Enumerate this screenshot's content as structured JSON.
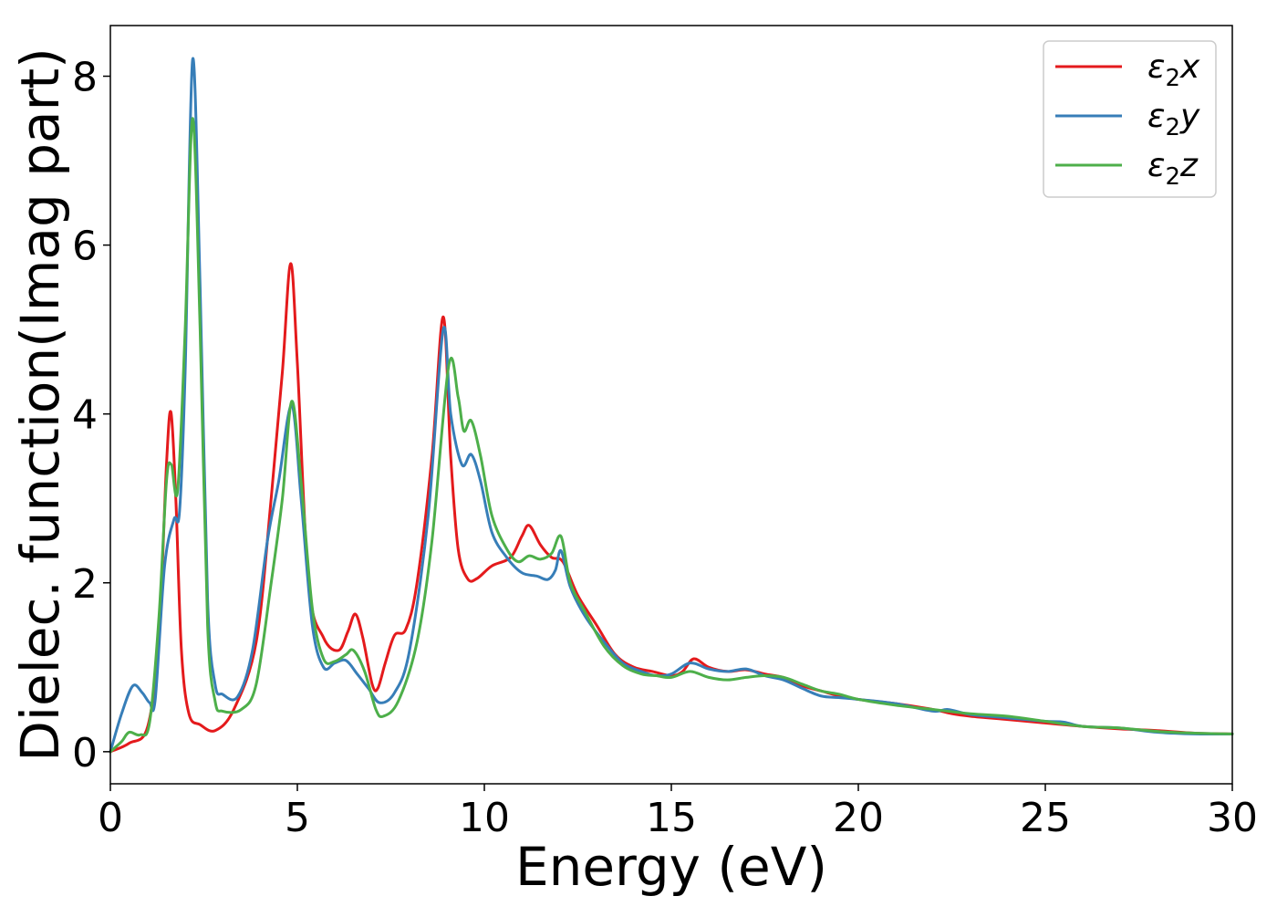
{
  "chart_data": {
    "type": "line",
    "title": "",
    "xlabel": "Energy (eV)",
    "ylabel": "Dielec. function(Imag part)",
    "xlim": [
      0,
      30
    ],
    "ylim": [
      -0.38,
      8.6
    ],
    "xticks": [
      0,
      5,
      10,
      15,
      20,
      25,
      30
    ],
    "yticks": [
      0,
      2,
      4,
      6,
      8
    ],
    "grid": false,
    "legend_position": "top-right",
    "series": [
      {
        "name": "ε₂x",
        "legend_base": "ε",
        "legend_sub": "2",
        "legend_suffix": "x",
        "color": "#e41a1c",
        "points": [
          [
            0,
            0
          ],
          [
            0.5,
            0.1
          ],
          [
            1.0,
            0.3
          ],
          [
            1.3,
            1.4
          ],
          [
            1.5,
            3.4
          ],
          [
            1.62,
            4.02
          ],
          [
            1.75,
            3.0
          ],
          [
            1.9,
            1.2
          ],
          [
            2.1,
            0.45
          ],
          [
            2.4,
            0.32
          ],
          [
            2.8,
            0.25
          ],
          [
            3.3,
            0.5
          ],
          [
            3.9,
            1.3
          ],
          [
            4.3,
            3.0
          ],
          [
            4.6,
            4.5
          ],
          [
            4.82,
            5.78
          ],
          [
            5.0,
            4.6
          ],
          [
            5.3,
            2.0
          ],
          [
            5.7,
            1.35
          ],
          [
            6.1,
            1.2
          ],
          [
            6.35,
            1.42
          ],
          [
            6.55,
            1.63
          ],
          [
            6.75,
            1.35
          ],
          [
            7.0,
            0.8
          ],
          [
            7.15,
            0.75
          ],
          [
            7.35,
            1.05
          ],
          [
            7.6,
            1.38
          ],
          [
            7.9,
            1.45
          ],
          [
            8.2,
            2.0
          ],
          [
            8.6,
            3.5
          ],
          [
            8.9,
            5.15
          ],
          [
            9.1,
            3.5
          ],
          [
            9.3,
            2.4
          ],
          [
            9.55,
            2.05
          ],
          [
            9.8,
            2.05
          ],
          [
            10.2,
            2.2
          ],
          [
            10.7,
            2.3
          ],
          [
            11.0,
            2.55
          ],
          [
            11.2,
            2.68
          ],
          [
            11.5,
            2.45
          ],
          [
            11.8,
            2.3
          ],
          [
            12.1,
            2.25
          ],
          [
            12.5,
            1.85
          ],
          [
            13.0,
            1.5
          ],
          [
            13.5,
            1.15
          ],
          [
            14.0,
            1.0
          ],
          [
            14.5,
            0.95
          ],
          [
            15.0,
            0.9
          ],
          [
            15.3,
            0.95
          ],
          [
            15.6,
            1.1
          ],
          [
            16.0,
            1.0
          ],
          [
            16.5,
            0.95
          ],
          [
            17.0,
            0.97
          ],
          [
            17.5,
            0.92
          ],
          [
            18.0,
            0.88
          ],
          [
            18.5,
            0.78
          ],
          [
            19.0,
            0.72
          ],
          [
            19.5,
            0.66
          ],
          [
            20.0,
            0.62
          ],
          [
            21.0,
            0.57
          ],
          [
            22.0,
            0.5
          ],
          [
            22.5,
            0.45
          ],
          [
            23.0,
            0.42
          ],
          [
            24.0,
            0.38
          ],
          [
            25.0,
            0.34
          ],
          [
            26.0,
            0.3
          ],
          [
            27.0,
            0.27
          ],
          [
            28.0,
            0.25
          ],
          [
            29.0,
            0.22
          ],
          [
            30.0,
            0.21
          ]
        ]
      },
      {
        "name": "ε₂y",
        "legend_base": "ε",
        "legend_sub": "2",
        "legend_suffix": "y",
        "color": "#377eb8",
        "points": [
          [
            0,
            0
          ],
          [
            0.3,
            0.45
          ],
          [
            0.6,
            0.78
          ],
          [
            0.85,
            0.7
          ],
          [
            1.05,
            0.58
          ],
          [
            1.2,
            0.62
          ],
          [
            1.45,
            2.2
          ],
          [
            1.7,
            2.75
          ],
          [
            1.85,
            2.85
          ],
          [
            2.0,
            4.5
          ],
          [
            2.2,
            8.2
          ],
          [
            2.4,
            5.5
          ],
          [
            2.6,
            1.8
          ],
          [
            2.8,
            0.8
          ],
          [
            3.0,
            0.68
          ],
          [
            3.4,
            0.65
          ],
          [
            3.8,
            1.2
          ],
          [
            4.2,
            2.5
          ],
          [
            4.5,
            3.2
          ],
          [
            4.85,
            4.1
          ],
          [
            5.1,
            3.0
          ],
          [
            5.4,
            1.5
          ],
          [
            5.7,
            1.0
          ],
          [
            6.0,
            1.05
          ],
          [
            6.3,
            1.08
          ],
          [
            6.6,
            0.92
          ],
          [
            6.9,
            0.75
          ],
          [
            7.2,
            0.58
          ],
          [
            7.6,
            0.7
          ],
          [
            8.0,
            1.2
          ],
          [
            8.5,
            2.8
          ],
          [
            8.9,
            5.0
          ],
          [
            9.1,
            4.0
          ],
          [
            9.4,
            3.4
          ],
          [
            9.65,
            3.52
          ],
          [
            9.9,
            3.2
          ],
          [
            10.2,
            2.6
          ],
          [
            10.6,
            2.3
          ],
          [
            11.0,
            2.12
          ],
          [
            11.4,
            2.08
          ],
          [
            11.7,
            2.04
          ],
          [
            11.9,
            2.15
          ],
          [
            12.05,
            2.38
          ],
          [
            12.3,
            1.95
          ],
          [
            12.7,
            1.6
          ],
          [
            13.2,
            1.3
          ],
          [
            13.7,
            1.05
          ],
          [
            14.2,
            0.95
          ],
          [
            14.6,
            0.9
          ],
          [
            15.0,
            0.92
          ],
          [
            15.5,
            1.05
          ],
          [
            16.0,
            0.98
          ],
          [
            16.5,
            0.95
          ],
          [
            17.0,
            0.98
          ],
          [
            17.5,
            0.9
          ],
          [
            18.0,
            0.85
          ],
          [
            18.5,
            0.75
          ],
          [
            19.0,
            0.66
          ],
          [
            19.5,
            0.64
          ],
          [
            20.0,
            0.62
          ],
          [
            21.0,
            0.57
          ],
          [
            22.0,
            0.48
          ],
          [
            22.4,
            0.5
          ],
          [
            23.0,
            0.44
          ],
          [
            24.0,
            0.4
          ],
          [
            25.0,
            0.36
          ],
          [
            25.5,
            0.35
          ],
          [
            26.0,
            0.3
          ],
          [
            27.0,
            0.28
          ],
          [
            28.0,
            0.23
          ],
          [
            29.0,
            0.21
          ],
          [
            30.0,
            0.21
          ]
        ]
      },
      {
        "name": "ε₂z",
        "legend_base": "ε",
        "legend_sub": "2",
        "legend_suffix": "z",
        "color": "#4daf4a",
        "points": [
          [
            0,
            0
          ],
          [
            0.3,
            0.12
          ],
          [
            0.5,
            0.23
          ],
          [
            0.8,
            0.2
          ],
          [
            1.05,
            0.35
          ],
          [
            1.3,
            1.6
          ],
          [
            1.5,
            3.2
          ],
          [
            1.63,
            3.4
          ],
          [
            1.8,
            3.1
          ],
          [
            2.0,
            5.0
          ],
          [
            2.2,
            7.5
          ],
          [
            2.4,
            5.0
          ],
          [
            2.6,
            1.5
          ],
          [
            2.8,
            0.6
          ],
          [
            3.0,
            0.48
          ],
          [
            3.5,
            0.5
          ],
          [
            3.9,
            0.8
          ],
          [
            4.3,
            2.0
          ],
          [
            4.6,
            3.0
          ],
          [
            4.85,
            4.15
          ],
          [
            5.1,
            3.2
          ],
          [
            5.4,
            1.7
          ],
          [
            5.7,
            1.1
          ],
          [
            6.0,
            1.07
          ],
          [
            6.3,
            1.15
          ],
          [
            6.5,
            1.2
          ],
          [
            6.8,
            0.95
          ],
          [
            7.1,
            0.5
          ],
          [
            7.3,
            0.42
          ],
          [
            7.7,
            0.6
          ],
          [
            8.2,
            1.3
          ],
          [
            8.6,
            2.5
          ],
          [
            9.05,
            4.58
          ],
          [
            9.3,
            4.2
          ],
          [
            9.45,
            3.8
          ],
          [
            9.65,
            3.92
          ],
          [
            9.9,
            3.5
          ],
          [
            10.2,
            2.8
          ],
          [
            10.6,
            2.4
          ],
          [
            10.9,
            2.25
          ],
          [
            11.2,
            2.32
          ],
          [
            11.5,
            2.28
          ],
          [
            11.8,
            2.35
          ],
          [
            12.05,
            2.55
          ],
          [
            12.3,
            2.0
          ],
          [
            12.7,
            1.65
          ],
          [
            13.2,
            1.25
          ],
          [
            13.7,
            1.02
          ],
          [
            14.2,
            0.92
          ],
          [
            14.6,
            0.9
          ],
          [
            15.0,
            0.88
          ],
          [
            15.5,
            0.95
          ],
          [
            16.0,
            0.88
          ],
          [
            16.5,
            0.85
          ],
          [
            17.0,
            0.88
          ],
          [
            17.5,
            0.9
          ],
          [
            18.0,
            0.88
          ],
          [
            18.5,
            0.8
          ],
          [
            19.0,
            0.72
          ],
          [
            19.5,
            0.68
          ],
          [
            20.0,
            0.62
          ],
          [
            21.0,
            0.55
          ],
          [
            22.0,
            0.5
          ],
          [
            23.0,
            0.45
          ],
          [
            24.0,
            0.42
          ],
          [
            25.0,
            0.36
          ],
          [
            26.0,
            0.3
          ],
          [
            27.0,
            0.28
          ],
          [
            28.0,
            0.24
          ],
          [
            29.0,
            0.22
          ],
          [
            30.0,
            0.21
          ]
        ]
      }
    ]
  }
}
